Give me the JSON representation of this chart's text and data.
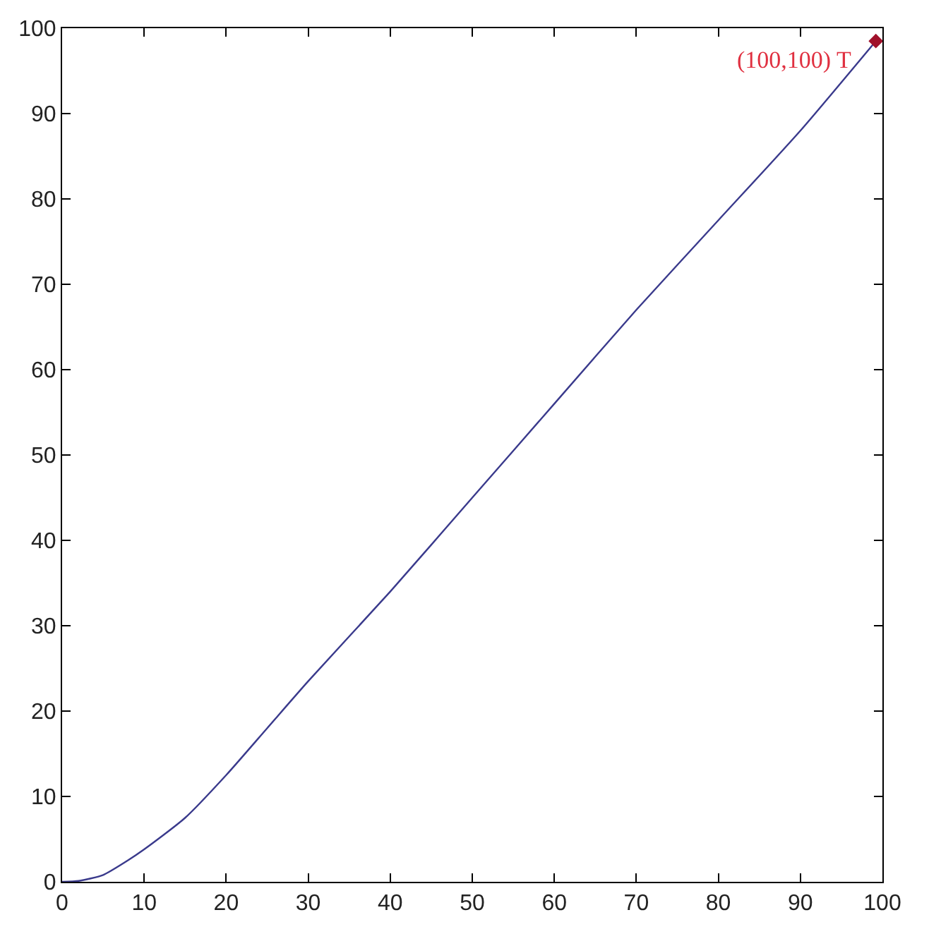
{
  "chart_data": {
    "type": "line",
    "xlim": [
      0,
      100
    ],
    "ylim": [
      0,
      100
    ],
    "xticks": [
      0,
      10,
      20,
      30,
      40,
      50,
      60,
      70,
      80,
      90,
      100
    ],
    "yticks": [
      0,
      10,
      20,
      30,
      40,
      50,
      60,
      70,
      80,
      90,
      100
    ],
    "marker": "none",
    "line_style": "solid",
    "series": [
      {
        "color": "#3a3a8c",
        "x": [
          0,
          2,
          5,
          8,
          10,
          15,
          20,
          25,
          30,
          40,
          50,
          60,
          70,
          80,
          90,
          99.2
        ],
        "values": [
          0,
          0.1,
          0.8,
          2.5,
          3.8,
          7.5,
          12.5,
          18,
          23.5,
          34,
          45,
          56,
          67,
          77.5,
          88,
          98.5
        ]
      },
      {
        "type": "scatter",
        "marker": "diamond",
        "color": "#a0102a",
        "x": [
          99.2
        ],
        "values": [
          98.5
        ]
      }
    ],
    "annotations": [
      {
        "text": "(100,100) T",
        "x": 99.2,
        "y": 98.5
      }
    ]
  }
}
